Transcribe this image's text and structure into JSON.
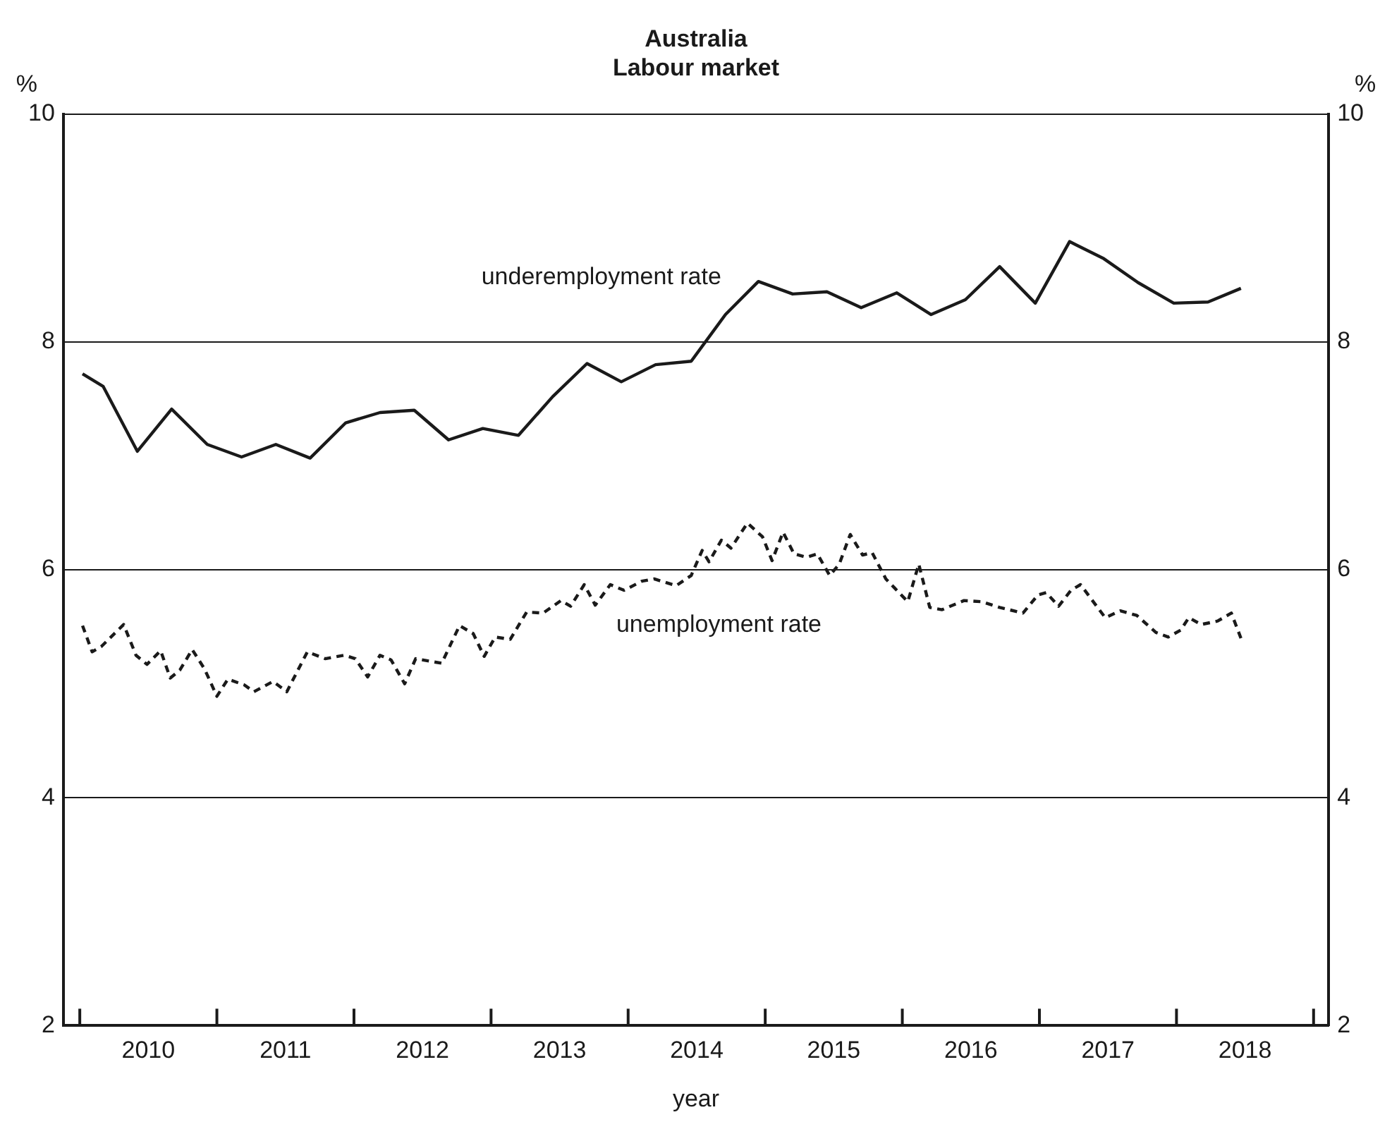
{
  "chart_data": {
    "type": "line",
    "title": "Australia",
    "subtitle": "Labour market",
    "xlabel": "year",
    "ylabel": "%",
    "y2label": "%",
    "xlim": [
      2009.88,
      2019.11
    ],
    "xticks": [
      {
        "value": 2010,
        "label": null
      },
      {
        "value": 2010.5,
        "label": "2010"
      },
      {
        "value": 2011,
        "label": null
      },
      {
        "value": 2011.5,
        "label": "2011"
      },
      {
        "value": 2012,
        "label": null
      },
      {
        "value": 2012.5,
        "label": "2012"
      },
      {
        "value": 2013,
        "label": null
      },
      {
        "value": 2013.5,
        "label": "2013"
      },
      {
        "value": 2014,
        "label": null
      },
      {
        "value": 2014.5,
        "label": "2014"
      },
      {
        "value": 2015,
        "label": null
      },
      {
        "value": 2015.5,
        "label": "2015"
      },
      {
        "value": 2016,
        "label": null
      },
      {
        "value": 2016.5,
        "label": "2016"
      },
      {
        "value": 2017,
        "label": null
      },
      {
        "value": 2017.5,
        "label": "2017"
      },
      {
        "value": 2018,
        "label": null
      },
      {
        "value": 2018.5,
        "label": "2018"
      },
      {
        "value": 2019,
        "label": null
      }
    ],
    "ylim": [
      2,
      10
    ],
    "yticks": [
      2,
      4,
      6,
      8,
      10
    ],
    "y2lim": [
      2,
      10
    ],
    "y2ticks": [
      2,
      4,
      6,
      8,
      10
    ],
    "grid": "y",
    "legend": false,
    "marker": "none",
    "series": [
      {
        "name": "underemployment rate",
        "color": "#1a1a1a",
        "line_style": "solid",
        "x": [
          2010.02,
          2010.17,
          2010.42,
          2010.67,
          2010.93,
          2011.18,
          2011.43,
          2011.68,
          2011.94,
          2012.19,
          2012.44,
          2012.69,
          2012.94,
          2013.2,
          2013.45,
          2013.7,
          2013.95,
          2014.2,
          2014.46,
          2014.71,
          2014.95,
          2015.2,
          2015.45,
          2015.7,
          2015.96,
          2016.21,
          2016.46,
          2016.71,
          2016.97,
          2017.22,
          2017.47,
          2017.72,
          2017.98,
          2018.23,
          2018.47
        ],
        "values": [
          7.72,
          7.61,
          7.04,
          7.41,
          7.1,
          6.99,
          7.1,
          6.98,
          7.29,
          7.38,
          7.4,
          7.14,
          7.24,
          7.18,
          7.52,
          7.81,
          7.65,
          7.8,
          7.83,
          8.24,
          8.53,
          8.42,
          8.44,
          8.3,
          8.43,
          8.24,
          8.37,
          8.66,
          8.34,
          8.88,
          8.73,
          8.52,
          8.34,
          8.35,
          8.47
        ]
      },
      {
        "name": "unemployment rate",
        "color": "#1a1a1a",
        "line_style": "dashed",
        "x": [
          2010.02,
          2010.09,
          2010.16,
          2010.32,
          2010.41,
          2010.49,
          2010.59,
          2010.66,
          2010.73,
          2010.82,
          2010.91,
          2011.0,
          2011.08,
          2011.2,
          2011.27,
          2011.41,
          2011.51,
          2011.66,
          2011.79,
          2011.93,
          2012.01,
          2012.1,
          2012.19,
          2012.27,
          2012.37,
          2012.45,
          2012.64,
          2012.77,
          2012.87,
          2012.95,
          2013.03,
          2013.14,
          2013.26,
          2013.38,
          2013.51,
          2013.58,
          2013.68,
          2013.76,
          2013.87,
          2013.97,
          2014.1,
          2014.19,
          2014.35,
          2014.46,
          2014.54,
          2014.59,
          2014.68,
          2014.75,
          2014.87,
          2014.98,
          2015.05,
          2015.13,
          2015.21,
          2015.3,
          2015.38,
          2015.47,
          2015.54,
          2015.62,
          2015.71,
          2015.78,
          2015.88,
          2016.04,
          2016.12,
          2016.2,
          2016.29,
          2016.45,
          2016.58,
          2016.71,
          2016.88,
          2016.99,
          2017.05,
          2017.14,
          2017.23,
          2017.3,
          2017.48,
          2017.59,
          2017.71,
          2017.85,
          2017.94,
          2018.03,
          2018.09,
          2018.18,
          2018.3,
          2018.4,
          2018.47
        ],
        "values": [
          5.51,
          5.28,
          5.33,
          5.52,
          5.25,
          5.17,
          5.29,
          5.05,
          5.12,
          5.3,
          5.13,
          4.89,
          5.04,
          4.99,
          4.93,
          5.02,
          4.93,
          5.28,
          5.22,
          5.25,
          5.22,
          5.06,
          5.25,
          5.21,
          5.0,
          5.22,
          5.18,
          5.51,
          5.44,
          5.24,
          5.41,
          5.39,
          5.63,
          5.62,
          5.73,
          5.68,
          5.87,
          5.69,
          5.87,
          5.82,
          5.9,
          5.92,
          5.86,
          5.95,
          6.17,
          6.07,
          6.26,
          6.19,
          6.41,
          6.29,
          6.08,
          6.33,
          6.14,
          6.11,
          6.14,
          5.95,
          6.05,
          6.31,
          6.13,
          6.15,
          5.92,
          5.72,
          6.05,
          5.67,
          5.65,
          5.73,
          5.72,
          5.67,
          5.62,
          5.78,
          5.8,
          5.68,
          5.82,
          5.87,
          5.58,
          5.64,
          5.6,
          5.45,
          5.41,
          5.47,
          5.58,
          5.52,
          5.55,
          5.62,
          5.4
        ]
      }
    ]
  }
}
